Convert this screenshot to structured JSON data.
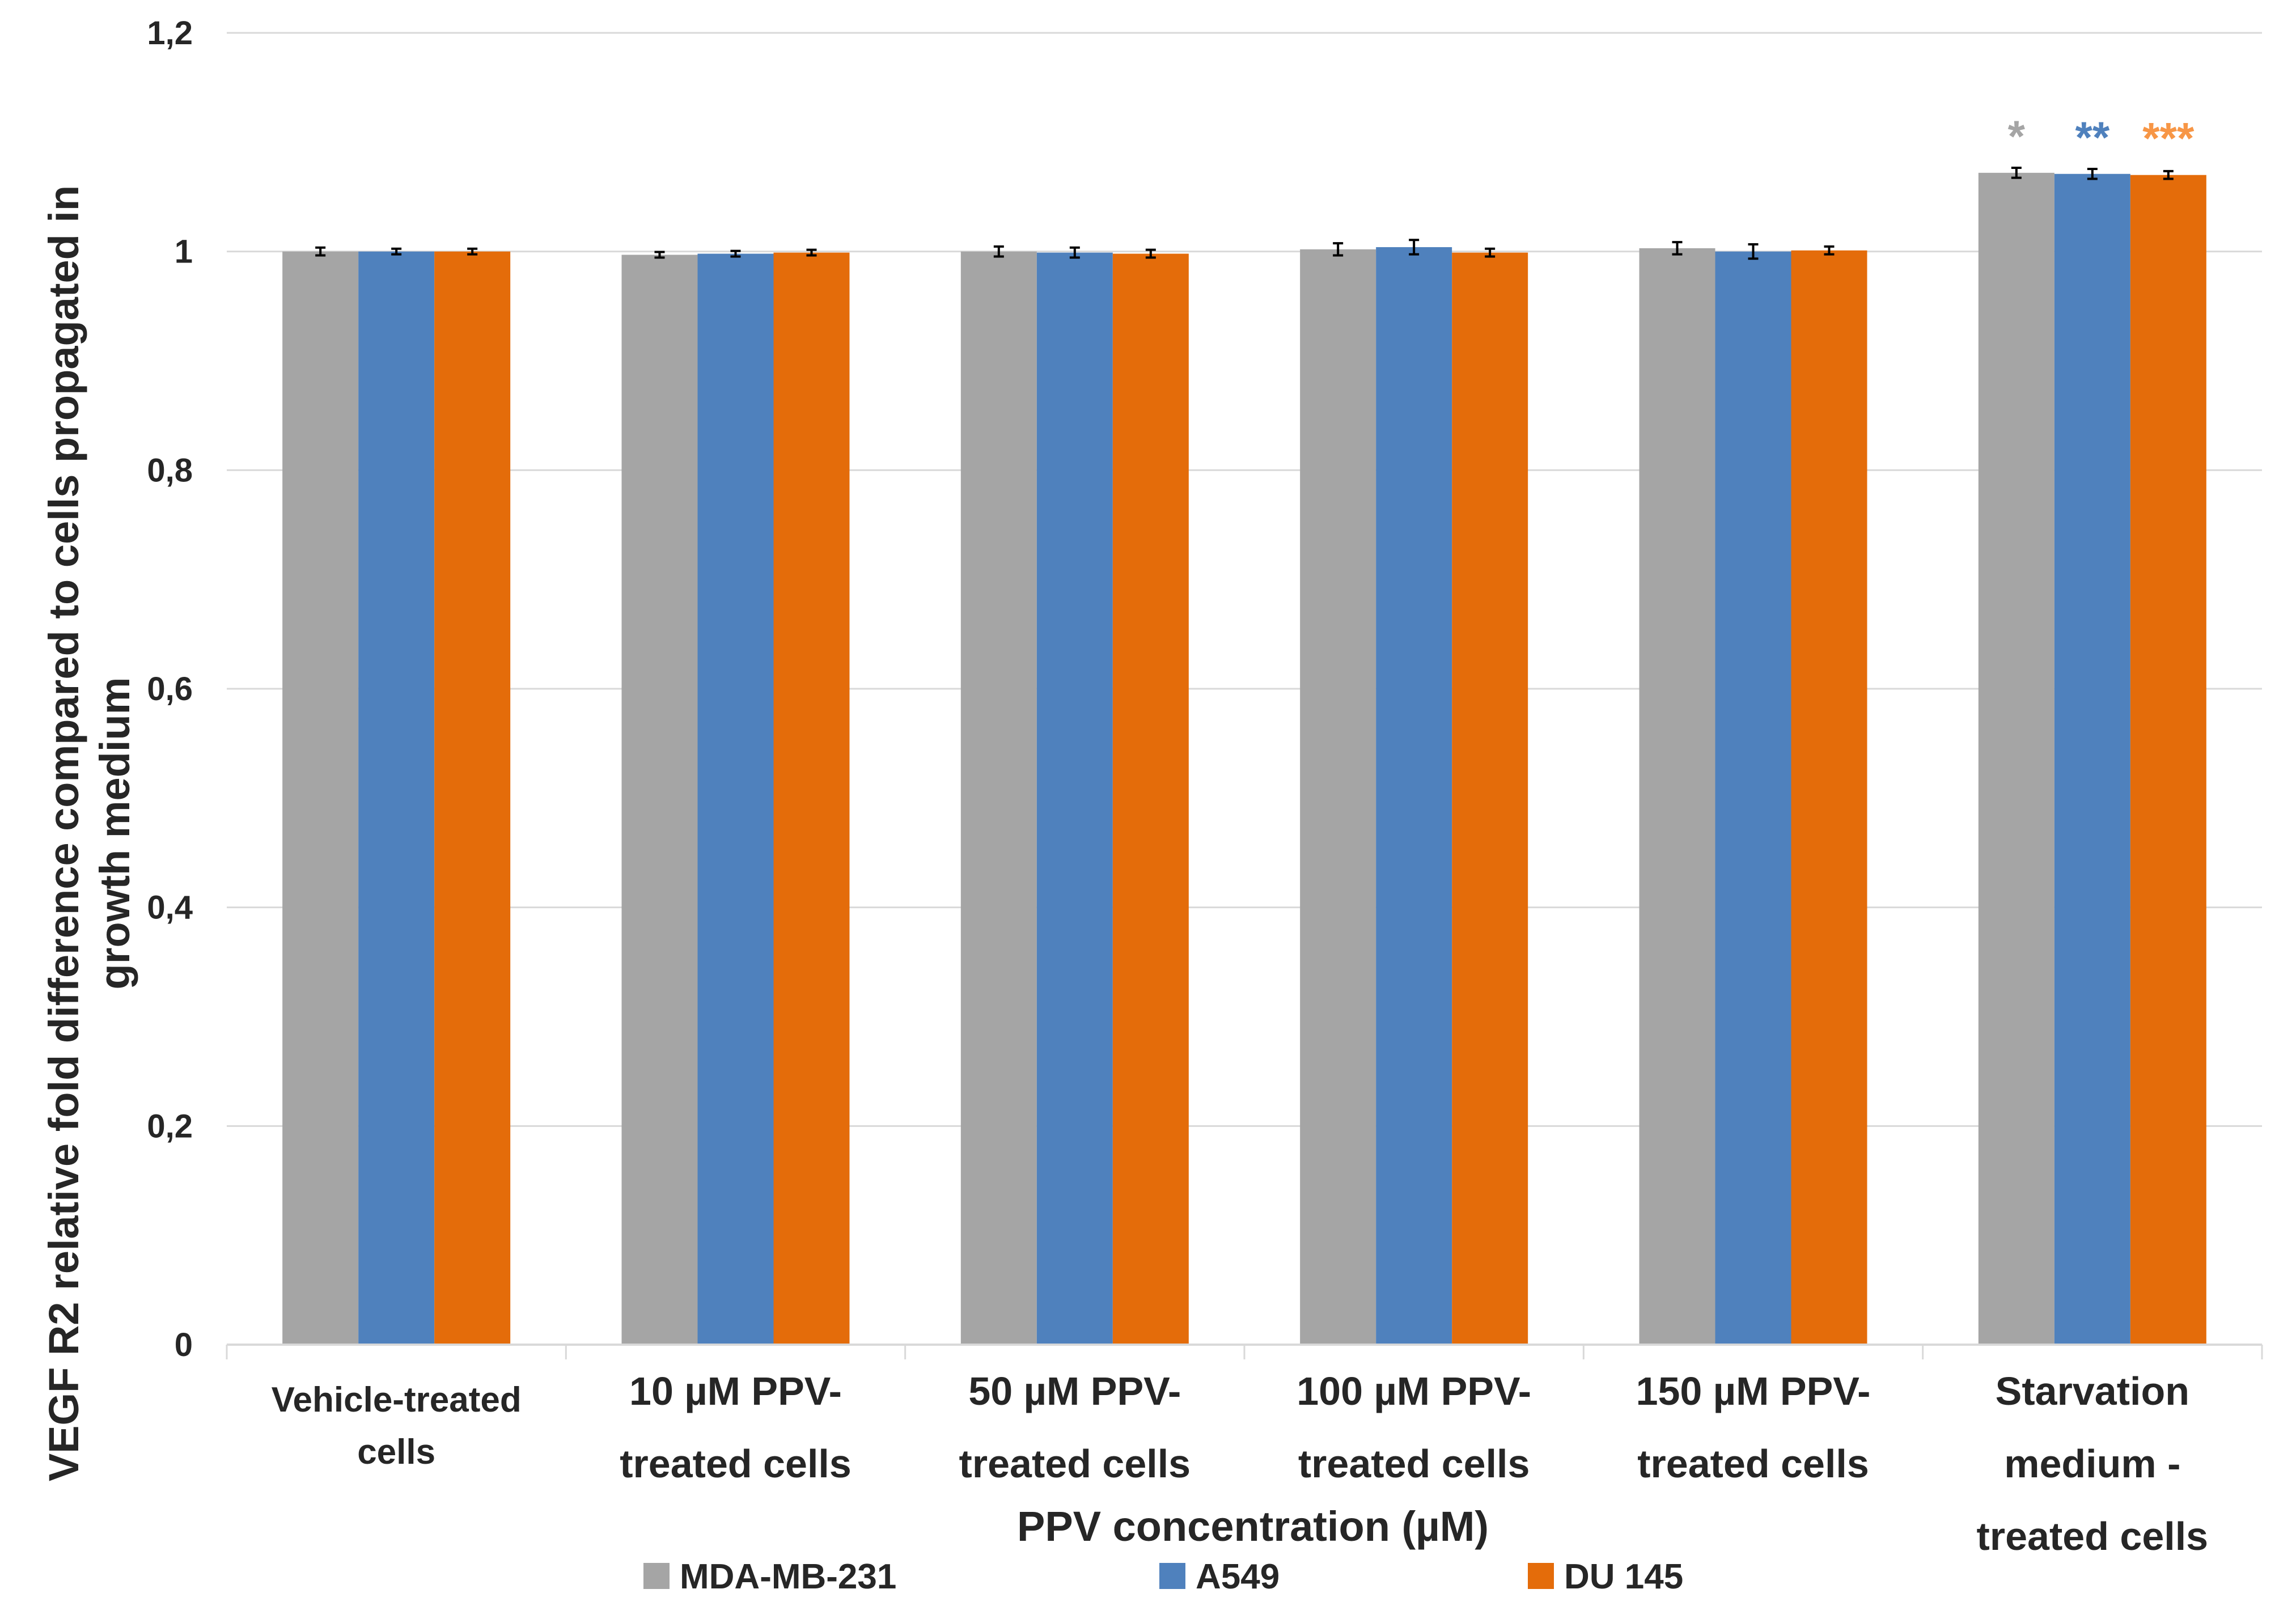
{
  "chart_data": {
    "type": "bar",
    "title": "",
    "xlabel": "PPV concentration (µM)",
    "ylabel_lines": [
      "VEGF R2  relative fold difference  compared to cells propagated in",
      "growth medium"
    ],
    "ylim": [
      0,
      1.2
    ],
    "yticks": [
      {
        "value": 0,
        "label": "0"
      },
      {
        "value": 0.2,
        "label": "0,2"
      },
      {
        "value": 0.4,
        "label": "0,4"
      },
      {
        "value": 0.6,
        "label": "0,6"
      },
      {
        "value": 0.8,
        "label": "0,8"
      },
      {
        "value": 1.0,
        "label": "1"
      },
      {
        "value": 1.2,
        "label": "1,2"
      }
    ],
    "grid": true,
    "legend_position": "bottom",
    "categories": [
      {
        "lines": [
          "Vehicle-treated",
          "cells"
        ],
        "small": true
      },
      {
        "lines": [
          "10 µM PPV-",
          "treated cells"
        ]
      },
      {
        "lines": [
          "50 µM PPV-",
          "treated cells"
        ]
      },
      {
        "lines": [
          "100 µM PPV-",
          "treated cells"
        ]
      },
      {
        "lines": [
          "150 µM PPV-",
          "treated cells"
        ]
      },
      {
        "lines": [
          "Starvation",
          "medium -",
          "treated cells"
        ]
      }
    ],
    "series": [
      {
        "name": "MDA-MB-231",
        "color": "#A5A5A5",
        "values": [
          1.0,
          0.997,
          1.0,
          1.002,
          1.003,
          1.072
        ],
        "errors": [
          0.002,
          0.001,
          0.003,
          0.004,
          0.004,
          0.003
        ]
      },
      {
        "name": "A549",
        "color": "#4F81BD",
        "values": [
          1.0,
          0.998,
          0.999,
          1.004,
          1.0,
          1.071
        ],
        "errors": [
          0.001,
          0.001,
          0.003,
          0.005,
          0.005,
          0.003
        ]
      },
      {
        "name": "DU 145",
        "color": "#E46C0A",
        "values": [
          1.0,
          0.999,
          0.998,
          0.999,
          1.001,
          1.07
        ],
        "errors": [
          0.001,
          0.001,
          0.002,
          0.002,
          0.002,
          0.002
        ]
      }
    ],
    "annotations": [
      {
        "category_index": 5,
        "series_index": 0,
        "text": "*",
        "color": "#A5A5A5"
      },
      {
        "category_index": 5,
        "series_index": 1,
        "text": "**",
        "color": "#4F81BD"
      },
      {
        "category_index": 5,
        "series_index": 2,
        "text": "***",
        "color": "#F79646"
      }
    ]
  }
}
